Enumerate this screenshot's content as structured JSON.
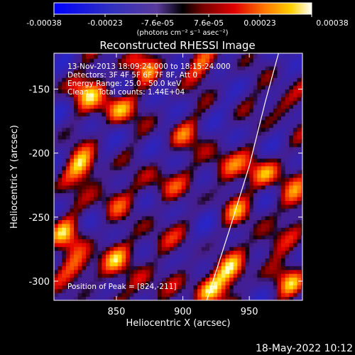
{
  "colorbar": {
    "tick_labels": [
      "-0.00038",
      "-0.00023",
      "-7.6e-05",
      "7.6e-05",
      "0.00023",
      "0.00038"
    ],
    "unit_label": "(photons cm⁻² s⁻¹ asec⁻²)"
  },
  "chart_data": {
    "type": "heatmap",
    "title": "Reconstructed RHESSI Image",
    "xlabel": "Heliocentric X (arcsec)",
    "ylabel": "Heliocentric Y (arcsec)",
    "xlim": [
      803,
      990
    ],
    "ylim": [
      -315,
      -122
    ],
    "xticks": [
      850,
      900,
      950
    ],
    "yticks": [
      -150,
      -200,
      -250,
      -300
    ],
    "colorbar_range": [
      -0.00038,
      0.00038
    ],
    "grid": false,
    "annotations": [
      "13-Nov-2013 18:09:24.000 to 18:15:24.000",
      "Detectors: 3F 4F 5F 6F 7F 8F, Att 0",
      "Energy Range: 25.0 - 50.0 keV",
      "Clean    Total counts: 1.44E+04",
      "Position of Peak = [824,-211]"
    ],
    "peak_position": [
      824,
      -211
    ],
    "limb_curve": [
      [
        918,
        -315
      ],
      [
        935,
        -260
      ],
      [
        950,
        -210
      ],
      [
        962,
        -160
      ],
      [
        972,
        -122
      ]
    ],
    "blobs": [
      {
        "x": 824,
        "y": -211,
        "v": 0.00038
      },
      {
        "x": 850,
        "y": -164,
        "v": 0.00034
      },
      {
        "x": 826,
        "y": -150,
        "v": 0.0003
      },
      {
        "x": 870,
        "y": -130,
        "v": 0.00026
      },
      {
        "x": 912,
        "y": -132,
        "v": 0.00024
      },
      {
        "x": 930,
        "y": -210,
        "v": 0.00028
      },
      {
        "x": 962,
        "y": -215,
        "v": 0.00032
      },
      {
        "x": 885,
        "y": -225,
        "v": 0.00024
      },
      {
        "x": 846,
        "y": -236,
        "v": 0.00022
      },
      {
        "x": 812,
        "y": -262,
        "v": 0.00028
      },
      {
        "x": 822,
        "y": -290,
        "v": 0.0003
      },
      {
        "x": 848,
        "y": -282,
        "v": 0.00024
      },
      {
        "x": 870,
        "y": -305,
        "v": 0.00022
      },
      {
        "x": 920,
        "y": -305,
        "v": 0.00036
      },
      {
        "x": 936,
        "y": -292,
        "v": 0.00028
      },
      {
        "x": 965,
        "y": -270,
        "v": 0.00024
      },
      {
        "x": 982,
        "y": -300,
        "v": 0.00026
      },
      {
        "x": 880,
        "y": -268,
        "v": 0.0002
      },
      {
        "x": 975,
        "y": -160,
        "v": 0.00022
      },
      {
        "x": 900,
        "y": -185,
        "v": 0.0002
      },
      {
        "x": 940,
        "y": -245,
        "v": 0.0002
      },
      {
        "x": 985,
        "y": -235,
        "v": 0.00022
      }
    ]
  },
  "footer": {
    "timestamp": "18-May-2022 10:12"
  }
}
